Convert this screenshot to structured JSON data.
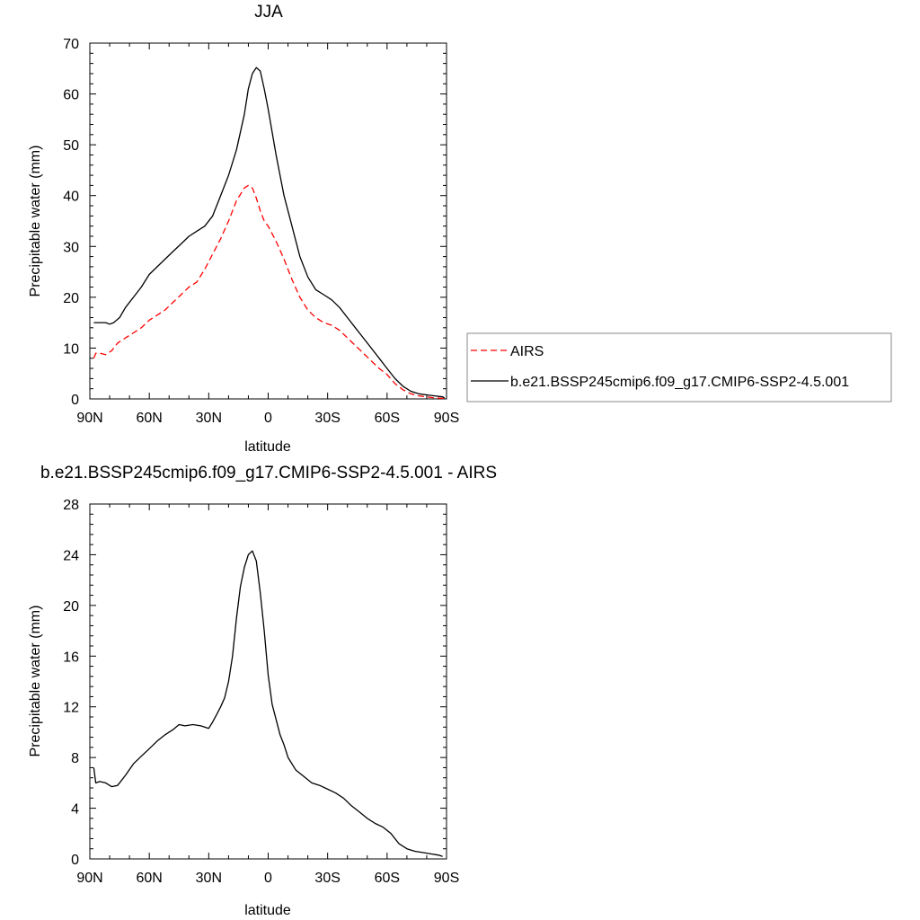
{
  "chart_data": [
    {
      "type": "line",
      "title": "JJA",
      "xlabel": "latitude",
      "ylabel": "Precipitable water (mm)",
      "xlim": [
        90,
        -90
      ],
      "ylim": [
        0,
        70
      ],
      "x_ticks": [
        90,
        60,
        30,
        0,
        -30,
        -60,
        -90
      ],
      "x_tick_labels": [
        "90N",
        "60N",
        "30N",
        "0",
        "30S",
        "60S",
        "90S"
      ],
      "y_ticks": [
        0,
        10,
        20,
        30,
        40,
        50,
        60,
        70
      ],
      "y_tick_labels": [
        "0",
        "10",
        "20",
        "30",
        "40",
        "50",
        "60",
        "70"
      ],
      "grid": false,
      "legend_position": "right",
      "series": [
        {
          "name": "AIRS",
          "color": "#ff0000",
          "dash": "dashed",
          "x": [
            88,
            87,
            85,
            82,
            79,
            76,
            72,
            68,
            64,
            60,
            56,
            52,
            48,
            44,
            40,
            36,
            32,
            28,
            24,
            20,
            16,
            12,
            10,
            8,
            6,
            4,
            2,
            0,
            -4,
            -8,
            -12,
            -16,
            -20,
            -24,
            -28,
            -32,
            -36,
            -40,
            -44,
            -48,
            -52,
            -56,
            -60,
            -64,
            -68,
            -72,
            -76,
            -80,
            -84,
            -88,
            -89
          ],
          "values": [
            8,
            9,
            9,
            8.7,
            9.5,
            11,
            12,
            13,
            14,
            15.5,
            16.5,
            17.5,
            19,
            20.5,
            22,
            23,
            25.5,
            28.5,
            31.5,
            35,
            39,
            41.5,
            42,
            41.5,
            39.5,
            37,
            35,
            34,
            31,
            27.5,
            23.5,
            20,
            17.5,
            16,
            15,
            14.5,
            13.5,
            12,
            10.5,
            9,
            7.5,
            6,
            4.8,
            3,
            1.8,
            1,
            0.6,
            0.4,
            0.2,
            0.1,
            0
          ]
        },
        {
          "name": "b.e21.BSSP245cmip6.f09_g17.CMIP6-SSP2-4.5.001",
          "color": "#000000",
          "dash": "solid",
          "x": [
            88,
            85,
            82,
            80,
            78,
            75,
            72,
            68,
            64,
            60,
            56,
            52,
            48,
            44,
            40,
            36,
            32,
            28,
            24,
            20,
            16,
            12,
            10,
            8,
            6,
            4,
            2,
            0,
            -4,
            -8,
            -12,
            -16,
            -20,
            -24,
            -28,
            -32,
            -36,
            -40,
            -44,
            -48,
            -52,
            -56,
            -60,
            -64,
            -68,
            -72,
            -76,
            -80,
            -84,
            -88,
            -89
          ],
          "values": [
            15,
            15,
            15,
            14.7,
            15,
            16,
            18,
            20,
            22,
            24.5,
            26,
            27.5,
            29,
            30.5,
            32,
            33,
            34,
            36,
            40,
            44,
            49,
            56,
            61,
            64,
            65.2,
            64.5,
            61,
            57,
            48,
            40,
            34,
            28,
            24,
            21.5,
            20.5,
            19.5,
            18,
            16,
            14,
            12,
            10,
            8,
            6,
            4,
            2.5,
            1.5,
            1,
            0.8,
            0.6,
            0.4,
            0.2
          ]
        }
      ]
    },
    {
      "type": "line",
      "title": "b.e21.BSSP245cmip6.f09_g17.CMIP6-SSP2-4.5.001 - AIRS",
      "xlabel": "latitude",
      "ylabel": "Precipitable water (mm)",
      "xlim": [
        90,
        -90
      ],
      "ylim": [
        0,
        28
      ],
      "x_ticks": [
        90,
        60,
        30,
        0,
        -30,
        -60,
        -90
      ],
      "x_tick_labels": [
        "90N",
        "60N",
        "30N",
        "0",
        "30S",
        "60S",
        "90S"
      ],
      "y_ticks": [
        0,
        4,
        8,
        12,
        16,
        20,
        24,
        28
      ],
      "y_tick_labels": [
        "0",
        "4",
        "8",
        "12",
        "16",
        "20",
        "24",
        "28"
      ],
      "grid": false,
      "series": [
        {
          "color": "#000000",
          "dash": "solid",
          "x": [
            88,
            87,
            85,
            82,
            79,
            76,
            72,
            68,
            64,
            60,
            56,
            52,
            48,
            45,
            42,
            38,
            34,
            30,
            28,
            26,
            24,
            22,
            20,
            18,
            16,
            14,
            12,
            10,
            8,
            6,
            4,
            2,
            0,
            -2,
            -4,
            -6,
            -8,
            -10,
            -14,
            -18,
            -22,
            -26,
            -30,
            -34,
            -38,
            -42,
            -46,
            -50,
            -54,
            -58,
            -62,
            -66,
            -70,
            -74,
            -78,
            -82,
            -86,
            -88
          ],
          "values": [
            7.2,
            6,
            6.1,
            6,
            5.7,
            5.8,
            6.6,
            7.5,
            8.1,
            8.7,
            9.3,
            9.8,
            10.2,
            10.6,
            10.5,
            10.6,
            10.5,
            10.3,
            10.8,
            11.4,
            12,
            12.7,
            14,
            16,
            19,
            21.5,
            23,
            24,
            24.3,
            23.5,
            21,
            18,
            14.5,
            12.2,
            11,
            9.8,
            9,
            8,
            7,
            6.5,
            6,
            5.8,
            5.5,
            5.2,
            4.8,
            4.2,
            3.7,
            3.2,
            2.8,
            2.5,
            2,
            1.2,
            0.8,
            0.6,
            0.5,
            0.4,
            0.3,
            0.2
          ]
        }
      ]
    }
  ]
}
